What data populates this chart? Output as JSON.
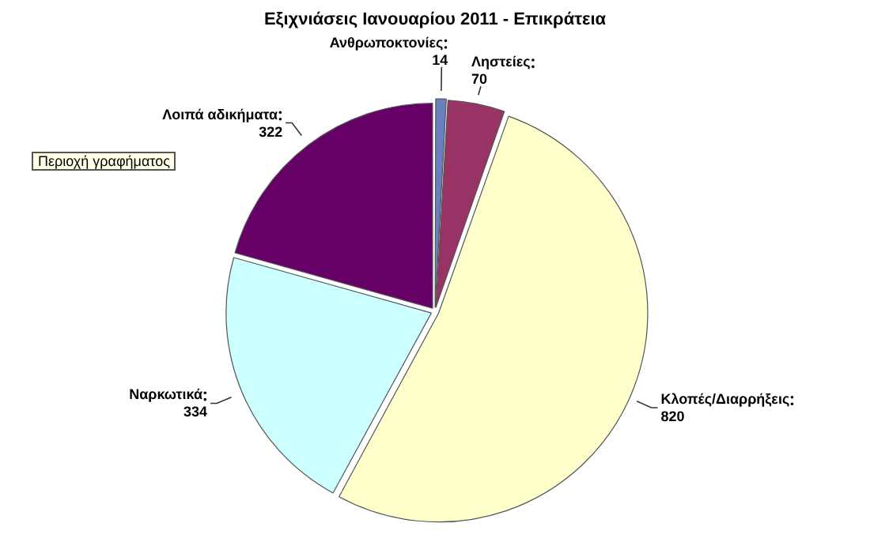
{
  "chart_data": {
    "type": "pie",
    "title": "Εξιχνιάσεις Ιανουαρίου 2011 - Επικράτεια",
    "categories": [
      "Ανθρωποκτονίες",
      "Ληστείες",
      "Κλοπές/Διαρρήξεις",
      "Ναρκωτικά",
      "Λοιπά αδικήματα"
    ],
    "values": [
      14,
      70,
      820,
      334,
      322
    ],
    "colors": [
      "#6a7fc0",
      "#993366",
      "#ffffcc",
      "#ccffff",
      "#660066"
    ],
    "data_labels": true,
    "annotations": [
      "Περιοχή γραφήματος"
    ],
    "legend": false
  }
}
